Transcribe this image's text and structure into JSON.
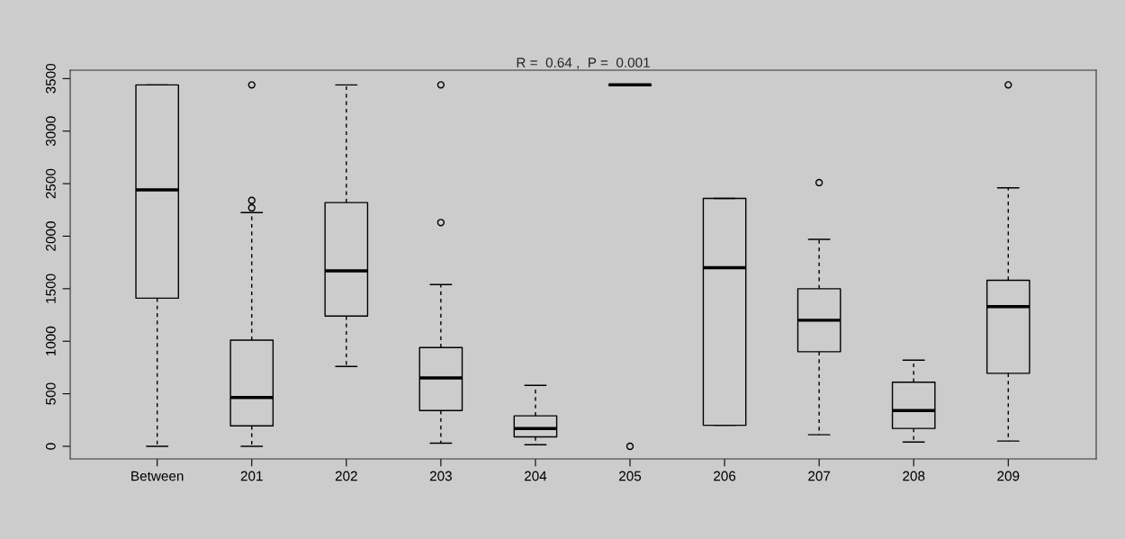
{
  "chart_data": {
    "type": "box",
    "title": "R =  0.64 ,  P =  0.001",
    "categories": [
      "Between",
      "201",
      "202",
      "203",
      "204",
      "205",
      "206",
      "207",
      "208",
      "209"
    ],
    "boxes": [
      {
        "low": 0,
        "q1": 1410,
        "median": 2440,
        "q3": 3440,
        "high": 3440
      },
      {
        "low": 0,
        "q1": 195,
        "median": 465,
        "q3": 1010,
        "high": 2225,
        "outliers": [
          2270,
          2340,
          3440
        ]
      },
      {
        "low": 760,
        "q1": 1240,
        "median": 1670,
        "q3": 2320,
        "high": 3440
      },
      {
        "low": 30,
        "q1": 340,
        "median": 650,
        "q3": 940,
        "high": 1540,
        "outliers": [
          2130,
          3440
        ]
      },
      {
        "low": 15,
        "q1": 90,
        "median": 170,
        "q3": 290,
        "high": 580
      },
      {
        "low": 3440,
        "q1": 3440,
        "median": 3440,
        "q3": 3440,
        "high": 3440,
        "outliers": [
          0
        ]
      },
      {
        "low": 200,
        "q1": 200,
        "median": 1700,
        "q3": 2360,
        "high": 2360
      },
      {
        "low": 110,
        "q1": 900,
        "median": 1200,
        "q3": 1500,
        "high": 1970,
        "outliers": [
          2510
        ]
      },
      {
        "low": 40,
        "q1": 170,
        "median": 340,
        "q3": 610,
        "high": 820
      },
      {
        "low": 50,
        "q1": 695,
        "median": 1330,
        "q3": 1580,
        "high": 2460,
        "outliers": [
          3440
        ]
      }
    ],
    "ylim": [
      -120,
      3580
    ],
    "yticks": [
      0,
      500,
      1000,
      1500,
      2000,
      2500,
      3000,
      3500
    ]
  }
}
